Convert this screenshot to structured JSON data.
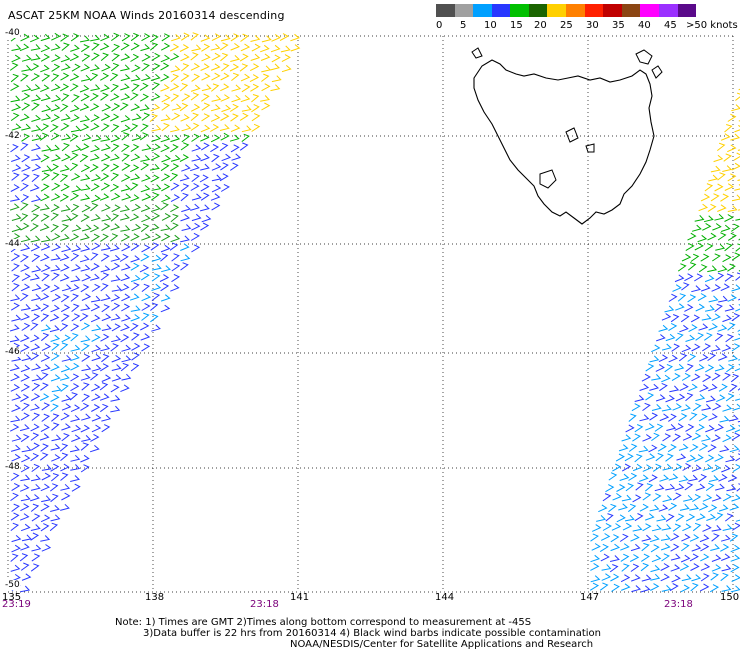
{
  "title": "ASCAT 25KM NOAA Winds 20160314 descending",
  "legend": {
    "colors": [
      "#505050",
      "#a0a0a0",
      "#00a0ff",
      "#2838ff",
      "#00c000",
      "#1a6400",
      "#ffd000",
      "#ff8000",
      "#ff2000",
      "#c00000",
      "#8b4513",
      "#ff00ff",
      "#9b30ff",
      "#5a0a8a"
    ],
    "labels": [
      "0",
      "5",
      "10",
      "15",
      "20",
      "25",
      "30",
      "35",
      "40",
      "45",
      ">50 knots"
    ]
  },
  "map": {
    "lon_labels": [
      "135",
      "138",
      "141",
      "144",
      "147",
      "150"
    ],
    "lat_labels": [
      "-40",
      "-42",
      "-44",
      "-46",
      "-48",
      "-50"
    ],
    "times": [
      "23:19",
      "23:18",
      "23:18"
    ]
  },
  "notes": {
    "line1": "Note: 1) Times are GMT 2)Times along bottom correspond to measurement at -45S",
    "line2": "3)Data buffer is 22 hrs from 20160314 4) Black wind barbs indicate possible contamination",
    "line3": "NOAA/NESDIS/Center for Satellite Applications and Research"
  }
}
